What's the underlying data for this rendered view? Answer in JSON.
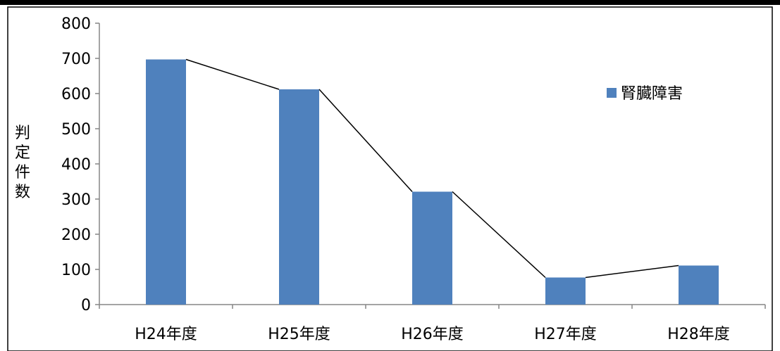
{
  "colors": {
    "bar": "#4F81BD",
    "line": "#000000",
    "axis": "#868686",
    "frame": "#000000"
  },
  "chart_data": {
    "type": "bar",
    "title": "",
    "xlabel": "",
    "ylabel": "判定件数",
    "categories": [
      "H24年度",
      "H25年度",
      "H26年度",
      "H27年度",
      "H28年度"
    ],
    "series": [
      {
        "name": "腎臓障害",
        "values": [
          697,
          612,
          321,
          77,
          111
        ]
      }
    ],
    "overlay_line": {
      "values": [
        697,
        612,
        321,
        77,
        111
      ]
    },
    "ylim": [
      0,
      800
    ],
    "yticks": [
      0,
      100,
      200,
      300,
      400,
      500,
      600,
      700,
      800
    ],
    "grid": false,
    "legend_position": "top-right"
  }
}
